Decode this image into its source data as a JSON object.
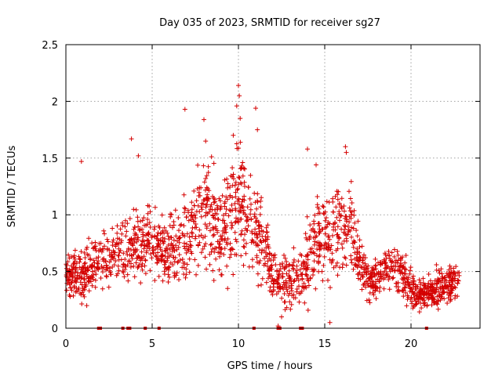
{
  "chart_data": {
    "type": "scatter",
    "title": "Day 035 of 2023, SRMTID for receiver sg27",
    "xlabel": "GPS time / hours",
    "ylabel": "SRMTID / TECUs",
    "xlim": [
      0,
      24
    ],
    "ylim": [
      0,
      2.5
    ],
    "xticks": [
      0,
      5,
      10,
      15,
      20
    ],
    "yticks": [
      0,
      0.5,
      1,
      1.5,
      2,
      2.5
    ],
    "xtick_labels": [
      "0",
      "5",
      "10",
      "15",
      "20"
    ],
    "ytick_labels": [
      "0",
      "0.5",
      "1",
      "1.5",
      "2",
      "2.5"
    ],
    "grid": true,
    "marker": "+",
    "color": "#d40000",
    "series_name": "sg27",
    "x_range_of_data": [
      0,
      22.8
    ],
    "trend": {
      "x": [
        0,
        0.5,
        1,
        1.5,
        2,
        2.5,
        3,
        3.5,
        4,
        4.5,
        5,
        5.5,
        6,
        6.5,
        7,
        7.5,
        8,
        8.5,
        9,
        9.5,
        10,
        10.5,
        11,
        11.5,
        12,
        12.5,
        13,
        13.5,
        14,
        14.5,
        15,
        15.5,
        16,
        16.5,
        17,
        17.5,
        18,
        18.5,
        19,
        19.5,
        20,
        20.5,
        21,
        21.5,
        22,
        22.5,
        22.8
      ],
      "y": [
        0.45,
        0.5,
        0.42,
        0.55,
        0.6,
        0.62,
        0.68,
        0.72,
        0.7,
        0.78,
        0.75,
        0.72,
        0.68,
        0.7,
        0.8,
        0.95,
        1.05,
        1.0,
        0.9,
        0.95,
        1.15,
        1.0,
        0.85,
        0.7,
        0.45,
        0.42,
        0.4,
        0.45,
        0.6,
        0.75,
        0.8,
        0.8,
        0.85,
        0.9,
        0.55,
        0.45,
        0.42,
        0.5,
        0.55,
        0.48,
        0.35,
        0.3,
        0.32,
        0.35,
        0.38,
        0.4,
        0.42
      ],
      "spread": [
        0.15,
        0.18,
        0.2,
        0.2,
        0.22,
        0.22,
        0.25,
        0.25,
        0.25,
        0.28,
        0.25,
        0.25,
        0.25,
        0.28,
        0.35,
        0.38,
        0.4,
        0.38,
        0.38,
        0.42,
        0.45,
        0.4,
        0.38,
        0.3,
        0.2,
        0.2,
        0.2,
        0.25,
        0.3,
        0.35,
        0.35,
        0.35,
        0.35,
        0.35,
        0.22,
        0.18,
        0.15,
        0.18,
        0.18,
        0.18,
        0.15,
        0.12,
        0.13,
        0.15,
        0.15,
        0.15,
        0.15
      ]
    },
    "outliers": [
      {
        "x": 0.9,
        "y": 1.47
      },
      {
        "x": 3.8,
        "y": 1.67
      },
      {
        "x": 6.9,
        "y": 1.93
      },
      {
        "x": 8.0,
        "y": 1.84
      },
      {
        "x": 8.1,
        "y": 1.65
      },
      {
        "x": 9.7,
        "y": 1.7
      },
      {
        "x": 9.9,
        "y": 1.96
      },
      {
        "x": 10.0,
        "y": 2.14
      },
      {
        "x": 10.05,
        "y": 2.05
      },
      {
        "x": 10.1,
        "y": 1.85
      },
      {
        "x": 11.0,
        "y": 1.94
      },
      {
        "x": 11.1,
        "y": 1.75
      },
      {
        "x": 14.0,
        "y": 1.58
      },
      {
        "x": 14.5,
        "y": 1.44
      },
      {
        "x": 16.2,
        "y": 1.6
      },
      {
        "x": 16.25,
        "y": 1.55
      },
      {
        "x": 4.2,
        "y": 1.52
      },
      {
        "x": 12.3,
        "y": 0.02
      },
      {
        "x": 12.5,
        "y": 0.1
      },
      {
        "x": 15.3,
        "y": 0.05
      }
    ],
    "rug_x": [
      1.9,
      2.0,
      3.3,
      3.6,
      3.7,
      4.6,
      5.4,
      10.9,
      12.3,
      12.4,
      13.6,
      13.7,
      20.9
    ]
  }
}
